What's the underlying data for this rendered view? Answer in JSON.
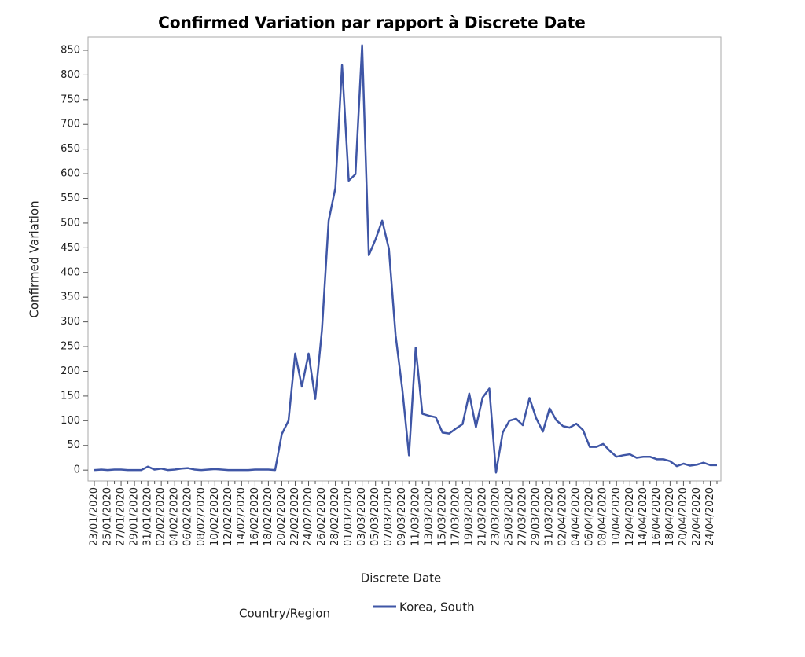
{
  "chart_data": {
    "type": "line",
    "title": "Confirmed Variation par rapport à Discrete Date",
    "x_label": "Discrete Date",
    "y_label": "Confirmed Variation",
    "legend_title": "Country/Region",
    "categories": [
      "23/01/2020",
      null,
      "25/01/2020",
      null,
      "27/01/2020",
      null,
      "29/01/2020",
      null,
      "31/01/2020",
      null,
      "02/02/2020",
      null,
      "04/02/2020",
      null,
      "06/02/2020",
      null,
      "08/02/2020",
      null,
      "10/02/2020",
      null,
      "12/02/2020",
      null,
      "14/02/2020",
      null,
      "16/02/2020",
      null,
      "18/02/2020",
      null,
      "20/02/2020",
      null,
      "22/02/2020",
      null,
      "24/02/2020",
      null,
      "26/02/2020",
      null,
      "28/02/2020",
      null,
      "01/03/2020",
      null,
      "03/03/2020",
      null,
      "05/03/2020",
      null,
      "07/03/2020",
      null,
      "09/03/2020",
      null,
      "11/03/2020",
      null,
      "13/03/2020",
      null,
      "15/03/2020",
      null,
      "17/03/2020",
      null,
      "19/03/2020",
      null,
      "21/03/2020",
      null,
      "23/03/2020",
      null,
      "25/03/2020",
      null,
      "27/03/2020",
      null,
      "29/03/2020",
      null,
      "31/03/2020",
      null,
      "02/04/2020",
      null,
      "04/04/2020",
      null,
      "06/04/2020",
      null,
      "08/04/2020",
      null,
      "10/04/2020",
      null,
      "12/04/2020",
      null,
      "14/04/2020",
      null,
      "16/04/2020",
      null,
      "18/04/2020",
      null,
      "20/04/2020",
      null,
      "22/04/2020",
      null,
      "24/04/2020",
      null
    ],
    "series": [
      {
        "name": "Korea, South",
        "color": "#3f56a6",
        "values": [
          0,
          1,
          0,
          1,
          1,
          0,
          0,
          0,
          7,
          1,
          3,
          0,
          1,
          3,
          4,
          1,
          0,
          1,
          2,
          1,
          0,
          0,
          0,
          0,
          1,
          1,
          1,
          0,
          73,
          100,
          236,
          169,
          236,
          144,
          284,
          505,
          571,
          820,
          586,
          599,
          860,
          435,
          467,
          505,
          448,
          273,
          164,
          30,
          248,
          114,
          110,
          107,
          76,
          74,
          84,
          93,
          155,
          87,
          147,
          165,
          -5,
          76,
          100,
          104,
          91,
          146,
          105,
          78,
          125,
          101,
          89,
          86,
          94,
          81,
          47,
          47,
          53,
          39,
          27,
          30,
          32,
          25,
          27,
          27,
          22,
          22,
          18,
          8,
          13,
          9,
          11,
          15,
          10,
          10
        ]
      }
    ],
    "ylim": [
      -22,
      877
    ],
    "yticks": [
      0,
      50,
      100,
      150,
      200,
      250,
      300,
      350,
      400,
      450,
      500,
      550,
      600,
      650,
      700,
      750,
      800,
      850
    ]
  }
}
